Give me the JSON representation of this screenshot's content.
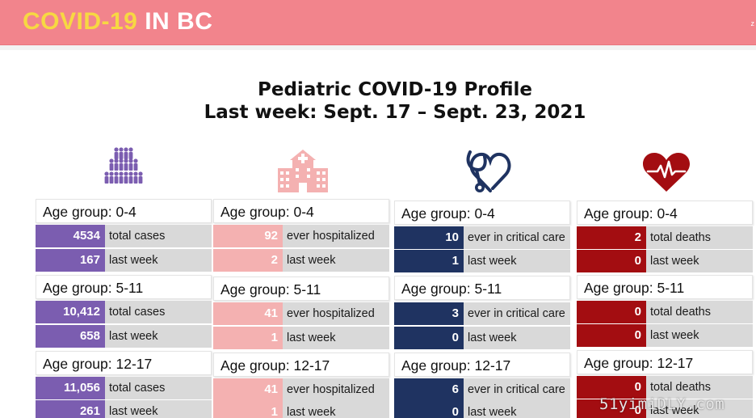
{
  "header": {
    "brand_highlight": "COVID-19",
    "brand_rest": "IN BC",
    "corner_text": "z",
    "colors": {
      "banner": "#f2848c",
      "highlight": "#f7d842"
    }
  },
  "title": {
    "line1": "Pediatric COVID-19 Profile",
    "line2": "Last week: Sept. 17 – Sept. 23, 2021"
  },
  "columns": [
    {
      "icon": "people-pyramid-icon",
      "color": "#7b5db0",
      "groups": [
        {
          "label": "Age group: 0-4",
          "rows": [
            {
              "value": "4534",
              "label": "total cases"
            },
            {
              "value": "167",
              "label": "last week"
            }
          ]
        },
        {
          "label": "Age group: 5-11",
          "rows": [
            {
              "value": "10,412",
              "label": "total cases"
            },
            {
              "value": "658",
              "label": "last week"
            }
          ]
        },
        {
          "label": "Age group: 12-17",
          "rows": [
            {
              "value": "11,056",
              "label": "total cases"
            },
            {
              "value": "261",
              "label": "last week"
            }
          ]
        }
      ]
    },
    {
      "icon": "hospital-icon",
      "color": "#f4b1b1",
      "groups": [
        {
          "label": "Age group: 0-4",
          "rows": [
            {
              "value": "92",
              "label": "ever hospitalized"
            },
            {
              "value": "2",
              "label": "last week"
            }
          ]
        },
        {
          "label": "Age group: 5-11",
          "rows": [
            {
              "value": "41",
              "label": "ever hospitalized"
            },
            {
              "value": "1",
              "label": "last week"
            }
          ]
        },
        {
          "label": "Age group: 12-17",
          "rows": [
            {
              "value": "41",
              "label": "ever hospitalized"
            },
            {
              "value": "1",
              "label": "last week"
            }
          ]
        }
      ]
    },
    {
      "icon": "stethoscope-heart-icon",
      "color": "#1f3361",
      "groups": [
        {
          "label": "Age group: 0-4",
          "rows": [
            {
              "value": "10",
              "label": "ever in critical care"
            },
            {
              "value": "1",
              "label": "last week"
            }
          ]
        },
        {
          "label": "Age group: 5-11",
          "rows": [
            {
              "value": "3",
              "label": "ever in critical care"
            },
            {
              "value": "0",
              "label": "last week"
            }
          ]
        },
        {
          "label": "Age group: 12-17",
          "rows": [
            {
              "value": "6",
              "label": "ever in critical care"
            },
            {
              "value": "0",
              "label": "last week"
            }
          ]
        }
      ]
    },
    {
      "icon": "heart-pulse-icon",
      "color": "#a30d11",
      "groups": [
        {
          "label": "Age group: 0-4",
          "rows": [
            {
              "value": "2",
              "label": "total deaths"
            },
            {
              "value": "0",
              "label": "last week"
            }
          ]
        },
        {
          "label": "Age group: 5-11",
          "rows": [
            {
              "value": "0",
              "label": "total deaths"
            },
            {
              "value": "0",
              "label": "last week"
            }
          ]
        },
        {
          "label": "Age group: 12-17",
          "rows": [
            {
              "value": "0",
              "label": "total deaths"
            },
            {
              "value": "0",
              "label": "last week"
            }
          ]
        }
      ]
    }
  ],
  "watermark": "51yimiDLY.com"
}
